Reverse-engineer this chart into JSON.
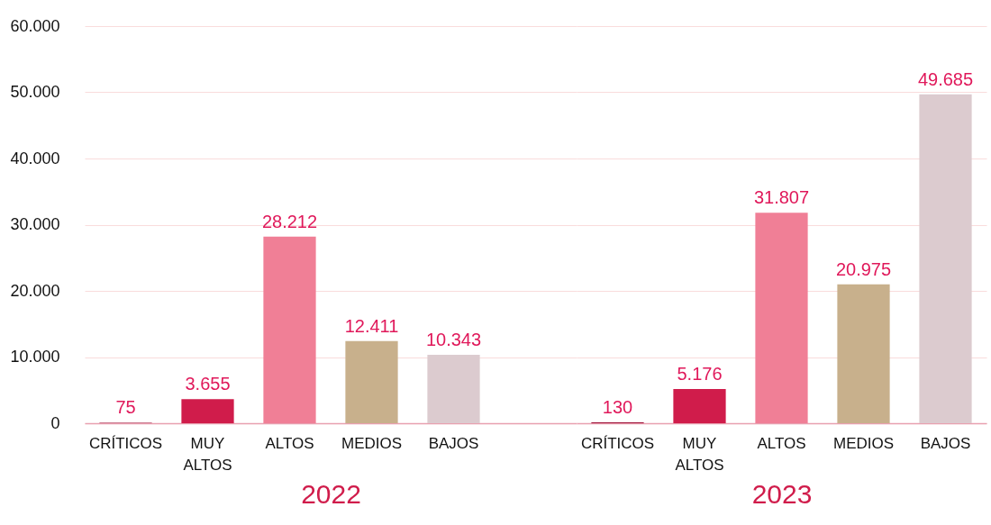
{
  "chart_data": [
    {
      "type": "bar",
      "xlabel": "2022",
      "categories": [
        "CRÍTICOS",
        "MUY ALTOS",
        "ALTOS",
        "MEDIOS",
        "BAJOS",
        null
      ],
      "values": [
        75,
        3655,
        28212,
        12411,
        10343,
        null
      ],
      "colors": [
        "#9e0f36",
        "#d01c4b",
        "#f07f96",
        "#c8b08c",
        "#dccbcf",
        "#dccbcf"
      ],
      "value_labels": [
        "75",
        "3.655",
        "28.212",
        "12.411",
        "10.343",
        null
      ],
      "ylim": [
        0,
        60000
      ],
      "yticks": [
        {
          "value": 0,
          "label": "0"
        },
        {
          "value": 10000,
          "label": "10.000"
        },
        {
          "value": 20000,
          "label": "20.000"
        },
        {
          "value": 30000,
          "label": "30.000"
        },
        {
          "value": 40000,
          "label": "40.000"
        },
        {
          "value": 50000,
          "label": "50.000"
        },
        {
          "value": 60000,
          "label": "60.000"
        }
      ],
      "grid": "y"
    },
    {
      "type": "bar",
      "xlabel": "2023",
      "categories": [
        "CRÍTICOS",
        "MUY ALTOS",
        "ALTOS",
        "MEDIOS",
        "BAJOS"
      ],
      "values": [
        130,
        5176,
        31807,
        20975,
        49685
      ],
      "colors": [
        "#9e0f36",
        "#d01c4b",
        "#f07f96",
        "#c8b08c",
        "#dccbcf"
      ],
      "value_labels": [
        "130",
        "5.176",
        "31.807",
        "20.975",
        "49.685"
      ],
      "ylim": [
        0,
        60000
      ],
      "yticks": [
        {
          "value": 0,
          "label": null
        },
        {
          "value": 10000,
          "label": null
        },
        {
          "value": 20000,
          "label": null
        },
        {
          "value": 30000,
          "label": null
        },
        {
          "value": 40000,
          "label": null
        },
        {
          "value": 50000,
          "label": null
        },
        {
          "value": 60000,
          "label": null
        }
      ],
      "grid": "y",
      "tick_labels": "x"
    }
  ]
}
